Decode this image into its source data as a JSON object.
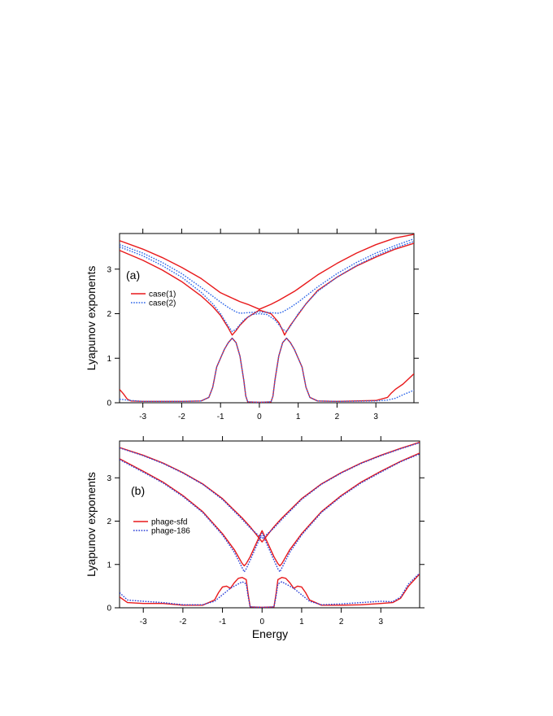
{
  "chart_data": [
    {
      "type": "line",
      "panel_label": "(a)",
      "xlabel": "",
      "ylabel": "Lyapunov exponents",
      "xlim": [
        -3.6,
        3.98
      ],
      "ylim": [
        0,
        3.8
      ],
      "xticks": [
        -3,
        -2,
        -1,
        0,
        1,
        2,
        3
      ],
      "yticks": [
        0,
        1,
        2,
        3
      ],
      "legend_position": "upper-left",
      "series": [
        {
          "name": "case(1)",
          "color": "#e8191b",
          "style": "solid",
          "curves": [
            {
              "x": [
                -3.6,
                -3.0,
                -2.5,
                -2.0,
                -1.5,
                -1.0,
                -0.9,
                -0.8,
                -0.7,
                -0.6,
                -0.5,
                -0.3,
                0.0,
                0.3,
                0.5,
                0.6,
                0.7,
                0.8,
                0.9,
                1.0,
                1.5,
                2.0,
                2.5,
                3.0,
                3.5,
                3.98
              ],
              "y": [
                3.64,
                3.45,
                3.26,
                3.04,
                2.79,
                2.47,
                2.43,
                2.39,
                2.35,
                2.31,
                2.27,
                2.21,
                2.1,
                2.21,
                2.3,
                2.35,
                2.4,
                2.45,
                2.5,
                2.56,
                2.87,
                3.13,
                3.36,
                3.55,
                3.7,
                3.78
              ]
            },
            {
              "x": [
                -3.6,
                -3.0,
                -2.5,
                -2.0,
                -1.5,
                -1.2,
                -1.0,
                -0.8,
                -0.7,
                -0.6,
                -0.5,
                -0.3,
                0.0,
                0.3,
                0.5,
                0.6,
                0.65,
                0.7,
                0.8,
                1.0,
                1.2,
                1.5,
                2.0,
                2.5,
                3.0,
                3.5,
                3.98
              ],
              "y": [
                3.42,
                3.2,
                2.98,
                2.72,
                2.4,
                2.16,
                1.96,
                1.68,
                1.52,
                1.62,
                1.74,
                1.92,
                2.08,
                2.0,
                1.8,
                1.62,
                1.52,
                1.6,
                1.74,
                1.98,
                2.22,
                2.52,
                2.82,
                3.07,
                3.27,
                3.45,
                3.58
              ]
            },
            {
              "x": [
                -3.6,
                -3.5,
                -3.4,
                -3.3,
                -3.0,
                -2.0,
                -1.5,
                -1.3,
                -1.2,
                -1.1,
                -1.0,
                -0.9,
                -0.8,
                -0.7,
                -0.6,
                -0.5,
                -0.4,
                -0.35,
                -0.3,
                0.0,
                0.3,
                0.35,
                0.4,
                0.5,
                0.6,
                0.7,
                0.8,
                0.9,
                1.0,
                1.1,
                1.2,
                1.3,
                1.5,
                2.0,
                3.0,
                3.3,
                3.4,
                3.5,
                3.7,
                3.98
              ],
              "y": [
                0.3,
                0.2,
                0.08,
                0.04,
                0.03,
                0.03,
                0.04,
                0.12,
                0.35,
                0.8,
                1.0,
                1.2,
                1.35,
                1.45,
                1.35,
                1.05,
                0.5,
                0.15,
                0.02,
                0.01,
                0.02,
                0.15,
                0.5,
                1.05,
                1.35,
                1.45,
                1.35,
                1.2,
                1.0,
                0.8,
                0.35,
                0.12,
                0.04,
                0.03,
                0.05,
                0.12,
                0.22,
                0.3,
                0.42,
                0.65
              ]
            }
          ]
        },
        {
          "name": "case(2)",
          "color": "#2a64e8",
          "style": "dotted",
          "curves": [
            {
              "x": [
                -3.6,
                -3.0,
                -2.5,
                -2.0,
                -1.5,
                -1.0,
                -0.8,
                -0.6,
                -0.5,
                0.0,
                0.5,
                0.6,
                0.8,
                1.0,
                1.5,
                2.0,
                2.5,
                3.0,
                3.5,
                3.98
              ],
              "y": [
                3.55,
                3.36,
                3.15,
                2.9,
                2.59,
                2.26,
                2.14,
                2.04,
                2.01,
                2.04,
                2.01,
                2.04,
                2.14,
                2.26,
                2.6,
                2.9,
                3.15,
                3.36,
                3.53,
                3.68
              ]
            },
            {
              "x": [
                -3.6,
                -3.0,
                -2.5,
                -2.0,
                -1.5,
                -1.2,
                -1.0,
                -0.8,
                -0.7,
                -0.6,
                -0.4,
                -0.2,
                0.0,
                0.2,
                0.4,
                0.6,
                0.7,
                0.8,
                1.0,
                1.2,
                1.5,
                2.0,
                2.5,
                3.0,
                3.5,
                3.98
              ],
              "y": [
                3.5,
                3.3,
                3.08,
                2.82,
                2.48,
                2.22,
                2.0,
                1.72,
                1.6,
                1.65,
                1.86,
                1.98,
                2.0,
                1.98,
                1.86,
                1.65,
                1.6,
                1.72,
                2.0,
                2.22,
                2.5,
                2.82,
                3.08,
                3.3,
                3.48,
                3.62
              ]
            },
            {
              "x": [
                -3.6,
                -3.3,
                -3.0,
                -2.0,
                -1.5,
                -1.3,
                -1.2,
                -1.1,
                -1.0,
                -0.9,
                -0.8,
                -0.7,
                -0.6,
                -0.5,
                -0.4,
                -0.35,
                -0.3,
                0.0,
                0.3,
                0.35,
                0.4,
                0.5,
                0.6,
                0.7,
                0.8,
                0.9,
                1.0,
                1.1,
                1.2,
                1.3,
                1.5,
                2.0,
                3.0,
                3.3,
                3.5,
                3.7,
                3.98
              ],
              "y": [
                0.08,
                0.05,
                0.03,
                0.03,
                0.04,
                0.12,
                0.35,
                0.8,
                1.0,
                1.2,
                1.35,
                1.45,
                1.35,
                1.05,
                0.5,
                0.15,
                0.02,
                0.01,
                0.02,
                0.15,
                0.5,
                1.05,
                1.35,
                1.45,
                1.35,
                1.2,
                1.0,
                0.8,
                0.35,
                0.12,
                0.04,
                0.03,
                0.04,
                0.06,
                0.1,
                0.18,
                0.28
              ]
            }
          ]
        }
      ]
    },
    {
      "type": "line",
      "panel_label": "(b)",
      "xlabel": "Energy",
      "ylabel": "Lyapunov exponents",
      "xlim": [
        -3.6,
        3.98
      ],
      "ylim": [
        0,
        3.85
      ],
      "xticks": [
        -3,
        -2,
        -1,
        0,
        1,
        2,
        3
      ],
      "yticks": [
        0,
        1,
        2,
        3
      ],
      "legend_position": "middle-left",
      "series": [
        {
          "name": "phage-sfd",
          "color": "#e8191b",
          "style": "solid",
          "curves": [
            {
              "x": [
                -3.6,
                -3.0,
                -2.5,
                -2.0,
                -1.5,
                -1.0,
                -0.5,
                -0.3,
                0.0,
                0.3,
                0.5,
                1.0,
                1.5,
                2.0,
                2.5,
                3.0,
                3.5,
                3.98
              ],
              "y": [
                3.7,
                3.52,
                3.34,
                3.12,
                2.86,
                2.52,
                2.07,
                1.87,
                1.52,
                1.87,
                2.07,
                2.52,
                2.86,
                3.12,
                3.34,
                3.52,
                3.68,
                3.82
              ]
            },
            {
              "x": [
                -3.6,
                -3.0,
                -2.5,
                -2.0,
                -1.5,
                -1.0,
                -0.7,
                -0.5,
                -0.45,
                -0.4,
                -0.3,
                0.0,
                0.3,
                0.4,
                0.45,
                0.5,
                0.7,
                1.0,
                1.5,
                2.0,
                2.5,
                3.0,
                3.5,
                3.98
              ],
              "y": [
                3.44,
                3.15,
                2.9,
                2.59,
                2.22,
                1.71,
                1.34,
                1.02,
                0.97,
                1.02,
                1.18,
                1.78,
                1.18,
                1.02,
                0.97,
                1.02,
                1.34,
                1.71,
                2.22,
                2.59,
                2.9,
                3.15,
                3.38,
                3.57
              ]
            },
            {
              "x": [
                -3.6,
                -3.4,
                -3.0,
                -2.5,
                -2.0,
                -1.5,
                -1.2,
                -1.1,
                -1.0,
                -0.9,
                -0.8,
                -0.7,
                -0.6,
                -0.5,
                -0.4,
                -0.35,
                -0.3,
                0.0,
                0.3,
                0.35,
                0.4,
                0.5,
                0.6,
                0.7,
                0.8,
                0.9,
                1.0,
                1.1,
                1.2,
                1.5,
                2.0,
                2.5,
                3.0,
                3.3,
                3.5,
                3.7,
                3.98
              ],
              "y": [
                0.25,
                0.12,
                0.1,
                0.1,
                0.06,
                0.06,
                0.18,
                0.35,
                0.48,
                0.5,
                0.45,
                0.58,
                0.68,
                0.7,
                0.65,
                0.3,
                0.02,
                0.01,
                0.02,
                0.3,
                0.65,
                0.7,
                0.68,
                0.58,
                0.45,
                0.5,
                0.48,
                0.35,
                0.18,
                0.06,
                0.06,
                0.07,
                0.1,
                0.12,
                0.22,
                0.5,
                0.78
              ]
            }
          ]
        },
        {
          "name": "phage-186",
          "color": "#2a3fd6",
          "style": "dotted",
          "curves": [
            {
              "x": [
                -3.6,
                -3.0,
                -2.5,
                -2.0,
                -1.5,
                -1.0,
                -0.5,
                -0.3,
                0.0,
                0.3,
                0.5,
                1.0,
                1.5,
                2.0,
                2.5,
                3.0,
                3.5,
                3.98
              ],
              "y": [
                3.69,
                3.51,
                3.33,
                3.11,
                2.85,
                2.5,
                2.04,
                1.84,
                1.6,
                1.84,
                2.04,
                2.5,
                2.85,
                3.11,
                3.33,
                3.51,
                3.67,
                3.81
              ]
            },
            {
              "x": [
                -3.6,
                -3.0,
                -2.5,
                -2.0,
                -1.5,
                -1.0,
                -0.7,
                -0.5,
                -0.45,
                -0.4,
                -0.3,
                0.0,
                0.3,
                0.4,
                0.45,
                0.5,
                0.7,
                1.0,
                1.5,
                2.0,
                2.5,
                3.0,
                3.5,
                3.98
              ],
              "y": [
                3.42,
                3.13,
                2.88,
                2.57,
                2.2,
                1.68,
                1.28,
                0.92,
                0.83,
                0.9,
                1.1,
                1.72,
                1.1,
                0.9,
                0.83,
                0.92,
                1.28,
                1.68,
                2.2,
                2.57,
                2.88,
                3.13,
                3.37,
                3.55
              ]
            },
            {
              "x": [
                -3.6,
                -3.4,
                -3.0,
                -2.5,
                -2.0,
                -1.5,
                -1.2,
                -1.0,
                -0.8,
                -0.6,
                -0.5,
                -0.4,
                -0.35,
                -0.3,
                0.0,
                0.3,
                0.35,
                0.4,
                0.5,
                0.6,
                0.8,
                1.0,
                1.2,
                1.5,
                2.0,
                2.5,
                3.0,
                3.3,
                3.5,
                3.7,
                3.98
              ],
              "y": [
                0.35,
                0.18,
                0.15,
                0.12,
                0.07,
                0.07,
                0.15,
                0.3,
                0.45,
                0.55,
                0.6,
                0.55,
                0.25,
                0.02,
                0.01,
                0.02,
                0.25,
                0.55,
                0.6,
                0.55,
                0.45,
                0.3,
                0.15,
                0.07,
                0.09,
                0.12,
                0.15,
                0.14,
                0.25,
                0.55,
                0.8
              ]
            }
          ]
        }
      ]
    }
  ]
}
